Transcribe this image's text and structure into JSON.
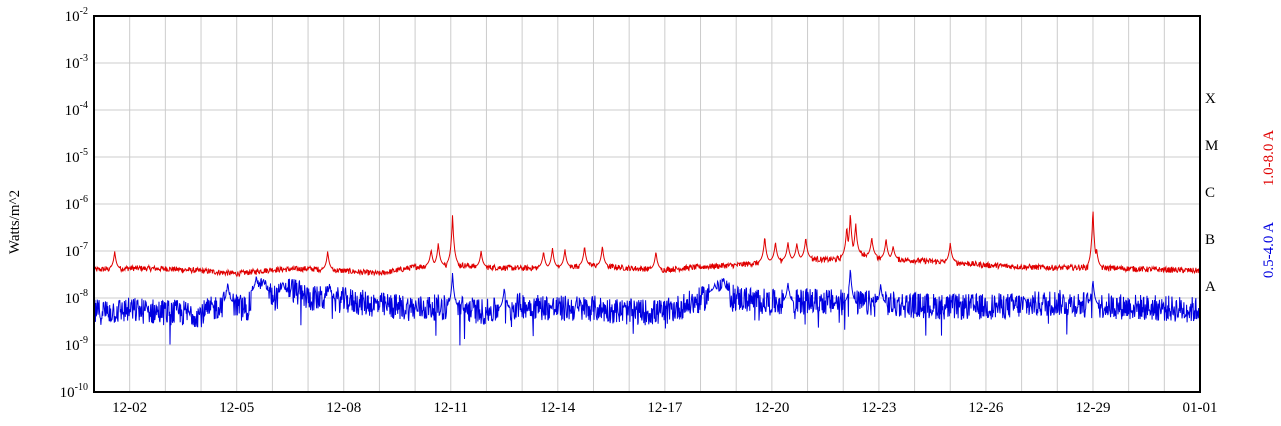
{
  "chart_data": {
    "type": "line",
    "title": "",
    "ylabel": "Watts/m^2",
    "y_scale": "log",
    "ylim": [
      1e-10,
      0.01
    ],
    "y_ticks": [
      {
        "base": "10",
        "exp": "-2"
      },
      {
        "base": "10",
        "exp": "-3"
      },
      {
        "base": "10",
        "exp": "-4"
      },
      {
        "base": "10",
        "exp": "-5"
      },
      {
        "base": "10",
        "exp": "-6"
      },
      {
        "base": "10",
        "exp": "-7"
      },
      {
        "base": "10",
        "exp": "-8"
      },
      {
        "base": "10",
        "exp": "-9"
      },
      {
        "base": "10",
        "exp": "-10"
      }
    ],
    "xlim": [
      "12-01",
      "01-01"
    ],
    "x_tick_labels": [
      "12-02",
      "12-05",
      "12-08",
      "12-11",
      "12-14",
      "12-17",
      "12-20",
      "12-23",
      "12-26",
      "12-29",
      "01-01"
    ],
    "x_tick_days": [
      1,
      4,
      7,
      10,
      13,
      16,
      19,
      22,
      25,
      28,
      31
    ],
    "flare_classes": [
      "X",
      "M",
      "C",
      "B",
      "A"
    ],
    "flare_class_levels": [
      0.0001,
      1e-05,
      1e-06,
      1e-07,
      1e-08
    ],
    "grid": true,
    "series": [
      {
        "name": "1.0-8.0 A",
        "color": "#e00000",
        "baseline": [
          [
            0,
            4e-08
          ],
          [
            1,
            4.3e-08
          ],
          [
            2,
            4.2e-08
          ],
          [
            3,
            3.8e-08
          ],
          [
            4,
            3.3e-08
          ],
          [
            5,
            4e-08
          ],
          [
            6,
            4.2e-08
          ],
          [
            7,
            3.8e-08
          ],
          [
            8,
            3.3e-08
          ],
          [
            9,
            4.6e-08
          ],
          [
            10,
            5.2e-08
          ],
          [
            11,
            4.5e-08
          ],
          [
            12,
            4.3e-08
          ],
          [
            13,
            4.5e-08
          ],
          [
            14,
            5e-08
          ],
          [
            15,
            4.3e-08
          ],
          [
            16,
            4e-08
          ],
          [
            17,
            4.6e-08
          ],
          [
            18,
            5e-08
          ],
          [
            19,
            6e-08
          ],
          [
            20,
            7e-08
          ],
          [
            20.5,
            6.5e-08
          ],
          [
            21,
            7e-08
          ],
          [
            21.5,
            9e-08
          ],
          [
            22,
            7e-08
          ],
          [
            23,
            6.3e-08
          ],
          [
            24,
            5.8e-08
          ],
          [
            25,
            5e-08
          ],
          [
            26,
            4.6e-08
          ],
          [
            27,
            4.4e-08
          ],
          [
            28,
            4.5e-08
          ],
          [
            29,
            4.2e-08
          ],
          [
            30,
            4e-08
          ],
          [
            31,
            3.8e-08
          ]
        ],
        "peaks": [
          [
            0.58,
            1e-07
          ],
          [
            6.55,
            1e-07
          ],
          [
            9.45,
            1.1e-07
          ],
          [
            9.65,
            1.5e-07
          ],
          [
            10.05,
            6e-07
          ],
          [
            10.85,
            1e-07
          ],
          [
            12.6,
            1e-07
          ],
          [
            12.85,
            1.2e-07
          ],
          [
            13.2,
            1.1e-07
          ],
          [
            13.75,
            1.3e-07
          ],
          [
            14.25,
            1.3e-07
          ],
          [
            15.75,
            1e-07
          ],
          [
            18.8,
            2.1e-07
          ],
          [
            19.1,
            1.6e-07
          ],
          [
            19.45,
            1.6e-07
          ],
          [
            19.7,
            1.5e-07
          ],
          [
            19.95,
            2e-07
          ],
          [
            21.1,
            3.5e-07
          ],
          [
            21.2,
            6.8e-07
          ],
          [
            21.35,
            4e-07
          ],
          [
            21.8,
            2e-07
          ],
          [
            22.2,
            1.9e-07
          ],
          [
            22.4,
            1.3e-07
          ],
          [
            24.0,
            1.5e-07
          ],
          [
            28.0,
            8.3e-07
          ],
          [
            28.1,
            1.2e-07
          ]
        ]
      },
      {
        "name": "0.5-4.0 A",
        "color": "#0000e0",
        "baseline": [
          [
            0,
            5e-09
          ],
          [
            1,
            5.5e-09
          ],
          [
            2,
            5e-09
          ],
          [
            3,
            4.5e-09
          ],
          [
            3.7,
            8e-09
          ],
          [
            4.3,
            6e-09
          ],
          [
            4.6,
            1.6e-08
          ],
          [
            5.1,
            1e-08
          ],
          [
            5.5,
            1.6e-08
          ],
          [
            6.0,
            1e-08
          ],
          [
            7.0,
            9e-09
          ],
          [
            8.0,
            7e-09
          ],
          [
            9.0,
            6e-09
          ],
          [
            10.0,
            6.5e-09
          ],
          [
            11.0,
            5e-09
          ],
          [
            12.0,
            7e-09
          ],
          [
            13.0,
            6e-09
          ],
          [
            14.0,
            6e-09
          ],
          [
            15.0,
            5e-09
          ],
          [
            16.0,
            5e-09
          ],
          [
            17.0,
            9e-09
          ],
          [
            17.5,
            1.5e-08
          ],
          [
            18.0,
            1e-08
          ],
          [
            19.0,
            8e-09
          ],
          [
            20.0,
            8.5e-09
          ],
          [
            21.0,
            8e-09
          ],
          [
            22.0,
            7.5e-09
          ],
          [
            23.0,
            7e-09
          ],
          [
            24.0,
            6.5e-09
          ],
          [
            25.0,
            6.5e-09
          ],
          [
            26.0,
            7e-09
          ],
          [
            27.0,
            8e-09
          ],
          [
            28.0,
            7e-09
          ],
          [
            29.0,
            6.5e-09
          ],
          [
            30.0,
            6e-09
          ],
          [
            31.0,
            5.5e-09
          ]
        ],
        "peaks": [
          [
            3.75,
            2.2e-08
          ],
          [
            4.55,
            3e-08
          ],
          [
            4.75,
            2.6e-08
          ],
          [
            5.3,
            2.2e-08
          ],
          [
            6.6,
            2e-08
          ],
          [
            10.05,
            3.5e-08
          ],
          [
            11.5,
            1.7e-08
          ],
          [
            17.4,
            2e-08
          ],
          [
            17.65,
            2.8e-08
          ],
          [
            19.45,
            2.2e-08
          ],
          [
            21.2,
            4.5e-08
          ],
          [
            22.05,
            2e-08
          ],
          [
            28.0,
            2.5e-08
          ]
        ]
      }
    ]
  }
}
